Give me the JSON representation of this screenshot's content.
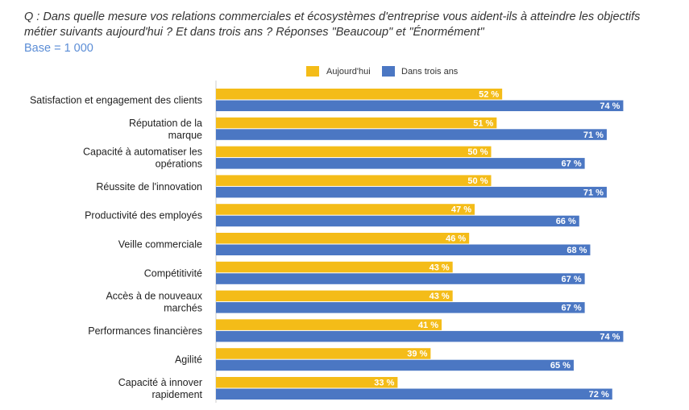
{
  "header": {
    "question": "Q : Dans quelle mesure vos relations commerciales et écosystèmes d'entreprise vous aident-ils à atteindre les objectifs métier suivants aujourd'hui ? Et dans trois ans ? Réponses \"Beaucoup\" et \"Énormément\"",
    "base": "Base = 1 000"
  },
  "colors": {
    "today": "#f4bc18",
    "future": "#4b77c3"
  },
  "chart_data": {
    "type": "bar",
    "orientation": "horizontal",
    "categories": [
      [
        "Satisfaction et engagement des clients"
      ],
      [
        "Réputation de la",
        "marque"
      ],
      [
        "Capacité à automatiser les",
        "opérations"
      ],
      [
        "Réussite de l'innovation"
      ],
      [
        "Productivité des employés"
      ],
      [
        "Veille commerciale"
      ],
      [
        "Compétitivité"
      ],
      [
        "Accès à de nouveaux",
        "marchés"
      ],
      [
        "Performances financières"
      ],
      [
        "Agilité"
      ],
      [
        "Capacité à innover",
        "rapidement"
      ]
    ],
    "series": [
      {
        "name": "Aujourd'hui",
        "values": [
          52,
          51,
          50,
          50,
          47,
          46,
          43,
          43,
          41,
          39,
          33
        ],
        "labels": [
          "52 %",
          "51 %",
          "50 %",
          "50 %",
          "47 %",
          "46 %",
          "43 %",
          "43 %",
          "41 %",
          "39 %",
          "33 %"
        ]
      },
      {
        "name": "Dans trois ans",
        "values": [
          74,
          71,
          67,
          71,
          66,
          68,
          67,
          67,
          74,
          65,
          72
        ],
        "labels": [
          "74 %",
          "71 %",
          "67 %",
          "71 %",
          "66 %",
          "68 %",
          "67 %",
          "67 %",
          "74 %",
          "65 %",
          "72 %"
        ]
      }
    ],
    "xlim": [
      0,
      75
    ],
    "legend_position": "top",
    "value_unit": "%"
  }
}
